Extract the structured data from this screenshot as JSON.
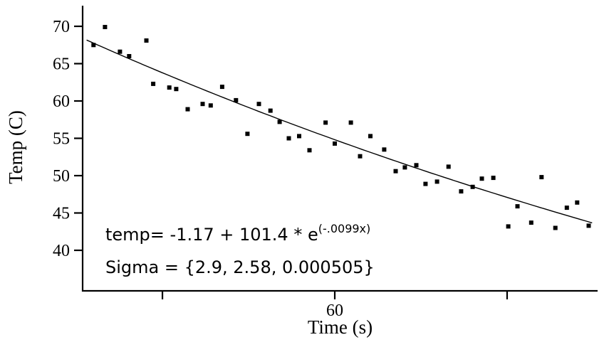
{
  "chart_data": {
    "type": "scatter",
    "title": "",
    "xlabel": "Time (s)",
    "ylabel": "Temp (C)",
    "grid": false,
    "legend": "none",
    "xlim": [
      38.0,
      83.0
    ],
    "ylim": [
      34.5,
      73.0
    ],
    "x_ticks": [
      {
        "value": 45,
        "label": ""
      },
      {
        "value": 60,
        "label": "60"
      },
      {
        "value": 75,
        "label": ""
      }
    ],
    "y_ticks": [
      {
        "value": 40,
        "label": "40"
      },
      {
        "value": 45,
        "label": "45"
      },
      {
        "value": 50,
        "label": "50"
      },
      {
        "value": 55,
        "label": "55"
      },
      {
        "value": 60,
        "label": "60"
      },
      {
        "value": 65,
        "label": "65"
      },
      {
        "value": 70,
        "label": "70"
      }
    ],
    "marker": {
      "shape": "square",
      "color": "#000000"
    },
    "points": [
      [
        39.0,
        67.5
      ],
      [
        40.0,
        69.9
      ],
      [
        41.3,
        66.6
      ],
      [
        42.1,
        66.0
      ],
      [
        43.6,
        68.1
      ],
      [
        44.2,
        62.3
      ],
      [
        45.6,
        61.8
      ],
      [
        46.2,
        61.6
      ],
      [
        47.2,
        58.9
      ],
      [
        48.5,
        59.6
      ],
      [
        49.2,
        59.4
      ],
      [
        50.2,
        61.9
      ],
      [
        51.4,
        60.1
      ],
      [
        52.4,
        55.6
      ],
      [
        53.4,
        59.6
      ],
      [
        54.4,
        58.7
      ],
      [
        55.2,
        57.2
      ],
      [
        56.0,
        55.0
      ],
      [
        56.9,
        55.3
      ],
      [
        57.8,
        53.4
      ],
      [
        59.2,
        57.1
      ],
      [
        60.0,
        54.3
      ],
      [
        61.4,
        57.1
      ],
      [
        62.2,
        52.6
      ],
      [
        63.1,
        55.3
      ],
      [
        64.3,
        53.5
      ],
      [
        65.3,
        50.6
      ],
      [
        66.1,
        51.1
      ],
      [
        67.1,
        51.4
      ],
      [
        67.9,
        48.9
      ],
      [
        68.9,
        49.2
      ],
      [
        69.9,
        51.2
      ],
      [
        71.0,
        47.9
      ],
      [
        72.0,
        48.5
      ],
      [
        72.8,
        49.6
      ],
      [
        73.8,
        49.7
      ],
      [
        75.1,
        43.2
      ],
      [
        75.9,
        45.9
      ],
      [
        77.1,
        43.7
      ],
      [
        78.0,
        49.8
      ],
      [
        79.2,
        43.0
      ],
      [
        80.2,
        45.7
      ],
      [
        81.1,
        46.4
      ],
      [
        82.1,
        43.3
      ]
    ],
    "fit_curve": {
      "type": "exponential",
      "formula": "temp = -1.17 + 101.4 * e^(-0.0099x)",
      "offset": -1.17,
      "amplitude": 101.4,
      "rate": -0.0099,
      "x_start": 38.4,
      "x_end": 82.8,
      "color": "#000000"
    },
    "annotations": {
      "equation_prefix": "temp= -1.17 + 101.4 * e",
      "equation_exponent": "(-.0099x)",
      "sigma": "Sigma = {2.9, 2.58, 0.000505}"
    }
  }
}
